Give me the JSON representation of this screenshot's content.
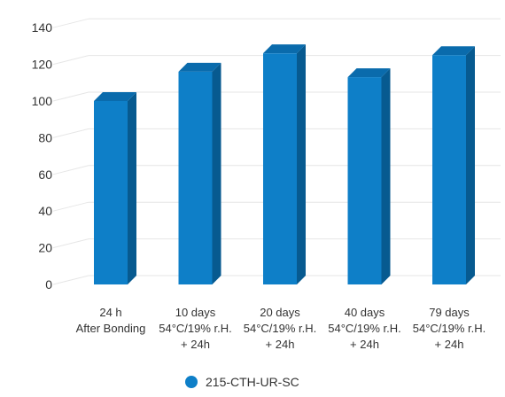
{
  "chart_data": {
    "type": "bar",
    "style": "3d-column",
    "title": "",
    "xlabel": "",
    "ylabel": "",
    "ylim": [
      0,
      140
    ],
    "yticks": [
      0,
      20,
      40,
      60,
      80,
      100,
      120,
      140
    ],
    "grid": true,
    "legend_position": "bottom-center",
    "categories": [
      [
        "24 h",
        "After Bonding"
      ],
      [
        "10 days",
        "54°C/19% r.H.",
        "+ 24h"
      ],
      [
        "20 days",
        "54°C/19% r.H.",
        "+ 24h"
      ],
      [
        "40 days",
        "54°C/19% r.H.",
        "+ 24h"
      ],
      [
        "79 days",
        "54°C/19% r.H.",
        "+ 24h"
      ]
    ],
    "series": [
      {
        "name": "215-CTH-UR-SC",
        "values": [
          100,
          116,
          126,
          113,
          125
        ]
      }
    ],
    "colors": {
      "bar_front": "#0e7fc8",
      "bar_side": "#075a90",
      "bar_top": "#0a6bac",
      "legend_marker": "#0e7fc8",
      "grid": "#e6e6e6",
      "text": "#333333"
    }
  }
}
